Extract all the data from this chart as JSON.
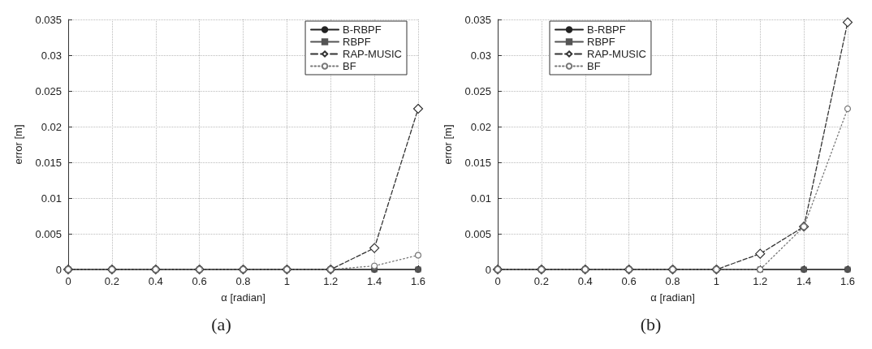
{
  "chart_data": [
    {
      "type": "line",
      "xlabel": "α [radian]",
      "ylabel": "error [m]",
      "annotations": [
        "(a)"
      ],
      "x": [
        0,
        0.2,
        0.4,
        0.6,
        0.8,
        1,
        1.2,
        1.4,
        1.6
      ],
      "xlim": [
        0,
        1.6
      ],
      "xticks": [
        0,
        0.2,
        0.4,
        0.6,
        0.8,
        1,
        1.2,
        1.4,
        1.6
      ],
      "ylim": [
        0,
        0.035
      ],
      "yticks": [
        0,
        0.005,
        0.01,
        0.015,
        0.02,
        0.025,
        0.03,
        0.035
      ],
      "grid": true,
      "legend": "top right",
      "series": [
        {
          "name": "B-RBPF",
          "color": "#222222",
          "marker": "circle",
          "line_style": "solid",
          "values": [
            0,
            0,
            0,
            0,
            0,
            0,
            0,
            0,
            0
          ]
        },
        {
          "name": "RBPF",
          "color": "#555555",
          "marker": "square",
          "line_style": "solid",
          "values": [
            0,
            0,
            0,
            0,
            0,
            0,
            0,
            0,
            0
          ]
        },
        {
          "name": "RAP-MUSIC",
          "color": "#333333",
          "marker": "diamond",
          "line_style": "dashed",
          "values": [
            0,
            0,
            0,
            0,
            0,
            0,
            0,
            0.003,
            0.0225
          ]
        },
        {
          "name": "BF",
          "color": "#777777",
          "marker": "circle",
          "line_style": "dotted",
          "values": [
            0,
            0,
            0,
            0,
            0,
            0,
            0,
            0.0005,
            0.002
          ]
        }
      ]
    },
    {
      "type": "line",
      "xlabel": "α [radian]",
      "ylabel": "error [m]",
      "annotations": [
        "(b)"
      ],
      "x": [
        0,
        0.2,
        0.4,
        0.6,
        0.8,
        1,
        1.2,
        1.4,
        1.6
      ],
      "xlim": [
        0,
        1.6
      ],
      "xticks": [
        0,
        0.2,
        0.4,
        0.6,
        0.8,
        1,
        1.2,
        1.4,
        1.6
      ],
      "ylim": [
        0,
        0.035
      ],
      "yticks": [
        0,
        0.005,
        0.01,
        0.015,
        0.02,
        0.025,
        0.03,
        0.035
      ],
      "grid": true,
      "legend": "top",
      "series": [
        {
          "name": "B-RBPF",
          "color": "#222222",
          "marker": "circle",
          "line_style": "solid",
          "values": [
            0,
            0,
            0,
            0,
            0,
            0,
            0,
            0,
            0
          ]
        },
        {
          "name": "RBPF",
          "color": "#555555",
          "marker": "square",
          "line_style": "solid",
          "values": [
            0,
            0,
            0,
            0,
            0,
            0,
            0,
            0,
            0
          ]
        },
        {
          "name": "RAP-MUSIC",
          "color": "#333333",
          "marker": "diamond",
          "line_style": "dashed",
          "values": [
            0,
            0,
            0,
            0,
            0,
            0,
            0.0022,
            0.006,
            0.0346
          ]
        },
        {
          "name": "BF",
          "color": "#777777",
          "marker": "circle",
          "line_style": "dotted",
          "values": [
            0,
            0,
            0,
            0,
            0,
            0,
            0,
            0.006,
            0.0225
          ]
        }
      ]
    }
  ]
}
